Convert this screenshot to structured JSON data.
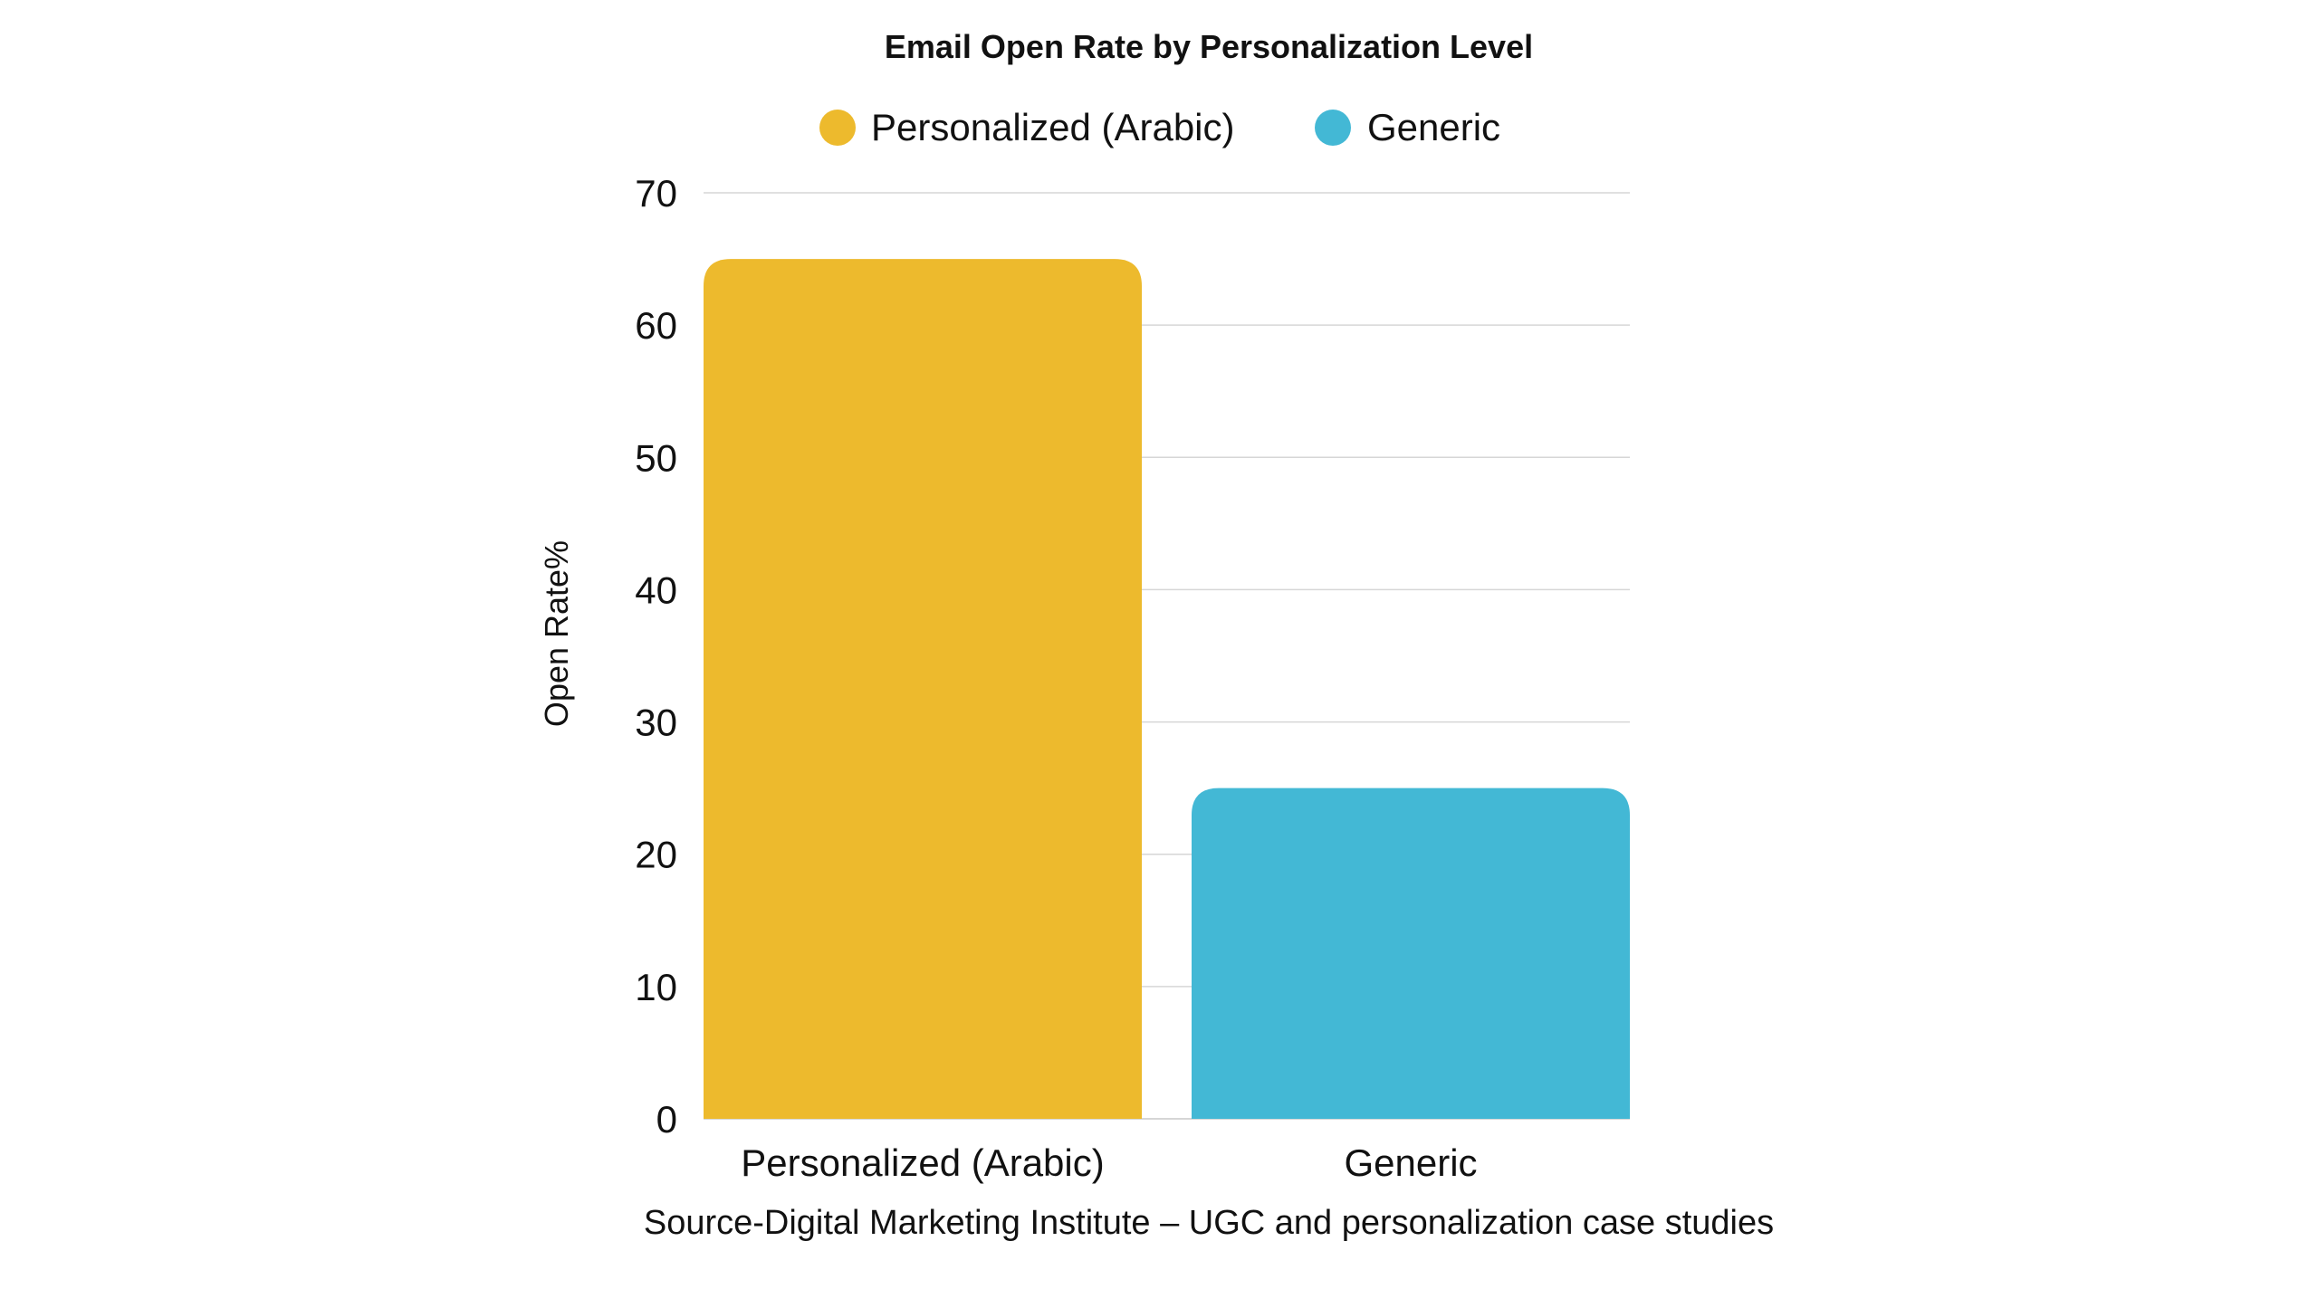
{
  "chart_data": {
    "type": "bar",
    "title": "Email Open Rate by Personalization Level",
    "categories": [
      "Personalized (Arabic)",
      "Generic"
    ],
    "values": [
      65,
      25
    ],
    "ylabel": "Open Rate%",
    "xlabel": "",
    "ylim": [
      0,
      70
    ],
    "yticks": [
      0,
      10,
      20,
      30,
      40,
      50,
      60,
      70
    ],
    "legend": {
      "placement": "top-center",
      "entries": [
        {
          "label": "Personalized (Arabic)",
          "color": "#EDBA2D"
        },
        {
          "label": "Generic",
          "color": "#43B8D5"
        }
      ]
    },
    "colors": [
      "#EDBA2D",
      "#43B8D5"
    ],
    "grid": true,
    "source": "Source-Digital Marketing Institute – UGC and personalization case studies"
  }
}
